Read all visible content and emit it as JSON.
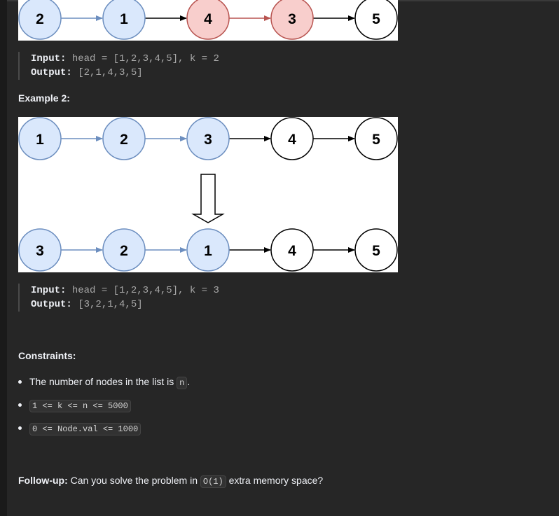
{
  "example1_diagram": {
    "nodes": [
      "2",
      "1",
      "4",
      "3",
      "5"
    ]
  },
  "example1": {
    "input_label": "Input:",
    "input_value": " head = [1,2,3,4,5], k = 2",
    "output_label": "Output:",
    "output_value": " [2,1,4,3,5]"
  },
  "example2_heading": "Example 2:",
  "example2_diagram": {
    "top_nodes": [
      "1",
      "2",
      "3",
      "4",
      "5"
    ],
    "bottom_nodes": [
      "3",
      "2",
      "1",
      "4",
      "5"
    ]
  },
  "example2": {
    "input_label": "Input:",
    "input_value": " head = [1,2,3,4,5], k = 3",
    "output_label": "Output:",
    "output_value": " [3,2,1,4,5]"
  },
  "constraints": {
    "heading": "Constraints:",
    "item1_text": "The number of nodes in the list is ",
    "item1_code": "n",
    "item1_suffix": ".",
    "item2_code": "1 <= k <= n <= 5000",
    "item3_code": "0 <= Node.val <= 1000"
  },
  "followup": {
    "label": "Follow-up:",
    "text_before": " Can you solve the problem in ",
    "code": "O(1)",
    "text_after": " extra memory space?"
  },
  "colors": {
    "reversed_fill": "#dae8fc",
    "reversed_stroke": "#6c8ebf",
    "highlight_fill": "#f8cecc",
    "highlight_stroke": "#b85450",
    "plain_fill": "#ffffff",
    "plain_stroke": "#000000"
  }
}
